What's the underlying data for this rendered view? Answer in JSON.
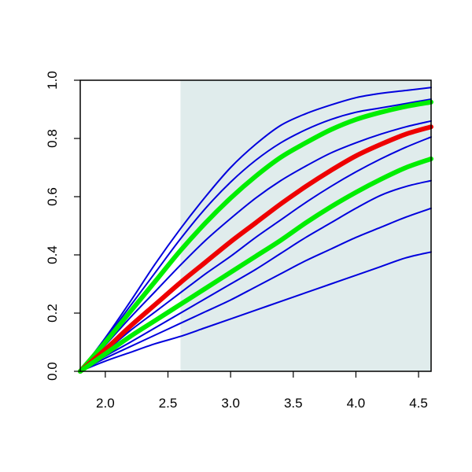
{
  "chart_data": {
    "type": "line",
    "title": "",
    "xlabel": "",
    "ylabel": "",
    "xlim": [
      1.8,
      4.6
    ],
    "ylim": [
      0.0,
      1.0
    ],
    "grid": false,
    "shaded_region": {
      "x_from": 2.6,
      "x_to": 4.6,
      "color": "#e0ecec"
    },
    "x_ticks": [
      "2.0",
      "2.5",
      "3.0",
      "3.5",
      "4.0",
      "4.5"
    ],
    "y_ticks": [
      "0.0",
      "0.2",
      "0.4",
      "0.6",
      "0.8",
      "1.0"
    ],
    "colors": {
      "blue": "#0000dd",
      "green": "#00ee00",
      "red": "#ee0000"
    },
    "x": [
      1.8,
      2.0,
      2.2,
      2.4,
      2.6,
      2.8,
      3.0,
      3.2,
      3.4,
      3.6,
      3.8,
      4.0,
      4.2,
      4.4,
      4.6
    ],
    "series": [
      {
        "color": "blue",
        "emphasis": false,
        "values": [
          0.0,
          0.115,
          0.24,
          0.37,
          0.49,
          0.6,
          0.7,
          0.78,
          0.845,
          0.885,
          0.915,
          0.94,
          0.955,
          0.965,
          0.975
        ]
      },
      {
        "color": "blue",
        "emphasis": false,
        "values": [
          0.0,
          0.11,
          0.225,
          0.34,
          0.455,
          0.56,
          0.65,
          0.725,
          0.785,
          0.83,
          0.865,
          0.89,
          0.905,
          0.92,
          0.935
        ]
      },
      {
        "color": "green",
        "emphasis": true,
        "values": [
          0.0,
          0.1,
          0.205,
          0.31,
          0.415,
          0.51,
          0.595,
          0.67,
          0.735,
          0.785,
          0.83,
          0.865,
          0.89,
          0.91,
          0.925
        ]
      },
      {
        "color": "blue",
        "emphasis": false,
        "values": [
          0.0,
          0.09,
          0.185,
          0.275,
          0.365,
          0.45,
          0.525,
          0.595,
          0.655,
          0.705,
          0.75,
          0.785,
          0.815,
          0.84,
          0.86
        ]
      },
      {
        "color": "red",
        "emphasis": true,
        "values": [
          0.0,
          0.075,
          0.155,
          0.23,
          0.305,
          0.375,
          0.445,
          0.51,
          0.575,
          0.635,
          0.69,
          0.74,
          0.78,
          0.815,
          0.84
        ]
      },
      {
        "color": "blue",
        "emphasis": false,
        "values": [
          0.0,
          0.068,
          0.14,
          0.205,
          0.27,
          0.335,
          0.395,
          0.46,
          0.52,
          0.58,
          0.635,
          0.685,
          0.73,
          0.77,
          0.805
        ]
      },
      {
        "color": "green",
        "emphasis": true,
        "values": [
          0.0,
          0.06,
          0.12,
          0.175,
          0.23,
          0.285,
          0.34,
          0.395,
          0.45,
          0.51,
          0.565,
          0.615,
          0.66,
          0.7,
          0.73
        ]
      },
      {
        "color": "blue",
        "emphasis": false,
        "values": [
          0.0,
          0.052,
          0.1,
          0.15,
          0.2,
          0.25,
          0.3,
          0.35,
          0.405,
          0.46,
          0.51,
          0.56,
          0.605,
          0.635,
          0.655
        ]
      },
      {
        "color": "blue",
        "emphasis": false,
        "values": [
          0.0,
          0.045,
          0.085,
          0.125,
          0.165,
          0.205,
          0.245,
          0.29,
          0.335,
          0.38,
          0.42,
          0.46,
          0.495,
          0.53,
          0.56
        ]
      },
      {
        "color": "blue",
        "emphasis": false,
        "values": [
          0.0,
          0.035,
          0.065,
          0.095,
          0.12,
          0.15,
          0.18,
          0.21,
          0.24,
          0.27,
          0.3,
          0.33,
          0.36,
          0.39,
          0.41
        ]
      }
    ]
  }
}
